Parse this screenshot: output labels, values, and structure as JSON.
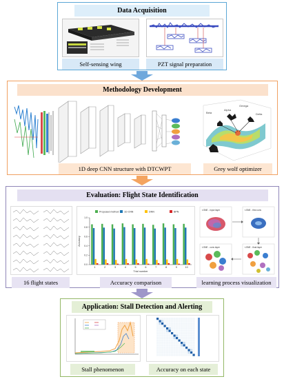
{
  "colors": {
    "stage1_border": "#5aa6d6",
    "stage1_title_bg": "#ddeefa",
    "stage1_caption_bg": "#d8e9f7",
    "stage2_border": "#f0a060",
    "stage2_title_bg": "#fbe1cc",
    "stage2_caption_bg": "#fde6d2",
    "stage3_border": "#8f86b8",
    "stage3_title_bg": "#e4e0f1",
    "stage3_caption_bg": "#e7e3f3",
    "stage4_border": "#93b765",
    "stage4_title_bg": "#e4efd6",
    "stage4_caption_bg": "#e5efd8",
    "arrow_blue": "#6fa8dc",
    "arrow_orange": "#f4a460",
    "arrow_purple": "#9e97c9"
  },
  "stages": {
    "data_acquisition": {
      "title": "Data Acquisition",
      "captions": [
        "Self-sensing wing",
        "PZT signal preparation"
      ]
    },
    "methodology": {
      "title": "Methodology Development",
      "captions": [
        "1D deep CNN structure with DTCWPT",
        "Grey wolf optimizer"
      ],
      "plot_labels": [
        "Beta",
        "Omega",
        "Delta",
        "Alpha"
      ]
    },
    "evaluation": {
      "title": "Evaluation: Flight State Identification",
      "captions": [
        "16 flight states",
        "Accuracy comparison",
        "learning process visualization"
      ],
      "legend": [
        "Proposed method",
        "1D CNN",
        "DNN",
        "BPN"
      ],
      "tsne_labels": [
        "t-SNE - input layer",
        "t-SNE - first conv",
        "t-SNE - conv layer",
        "t-SNE - final layer"
      ]
    },
    "application": {
      "title": "Application: Stall Detection and Alerting",
      "captions": [
        "Stall phenomenon",
        "Accuracy on each state"
      ]
    }
  },
  "chart_data": {
    "type": "bar",
    "xlabel": "Trial number",
    "ylabel": "Accuracy",
    "categories": [
      "1",
      "2",
      "3",
      "4",
      "5",
      "6",
      "7",
      "8",
      "9",
      "10"
    ],
    "ylim": [
      0,
      1
    ],
    "series": [
      {
        "name": "Proposed method",
        "color": "#4caf50",
        "values": [
          0.86,
          0.87,
          0.86,
          0.88,
          0.86,
          0.87,
          0.85,
          0.88,
          0.86,
          0.87
        ]
      },
      {
        "name": "1D CNN",
        "color": "#1f77b4",
        "values": [
          0.78,
          0.79,
          0.77,
          0.8,
          0.78,
          0.79,
          0.77,
          0.79,
          0.78,
          0.79
        ]
      },
      {
        "name": "DNN",
        "color": "#ffc107",
        "values": [
          0.12,
          0.11,
          0.1,
          0.12,
          0.11,
          0.12,
          0.1,
          0.11,
          0.12,
          0.11
        ]
      },
      {
        "name": "BPN",
        "color": "#d62728",
        "values": [
          0.03,
          0.03,
          0.02,
          0.03,
          0.03,
          0.02,
          0.03,
          0.03,
          0.02,
          0.03
        ]
      }
    ]
  }
}
